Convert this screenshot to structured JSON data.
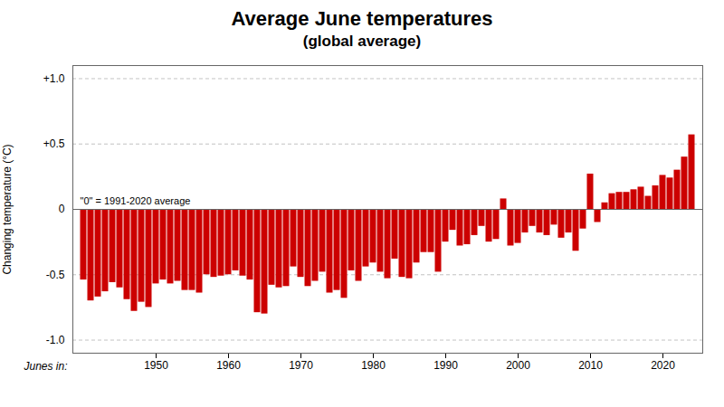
{
  "chart_data": {
    "type": "bar",
    "title": "Average June temperatures",
    "subtitle": "(global average)",
    "ylabel": "Changing temperature (°C)",
    "xlabel": "Junes in:",
    "annotation": "\"0\" = 1991-2020 average",
    "color": "#cc0000",
    "grid": true,
    "xlim": [
      1938.5,
      2025.5
    ],
    "xticks": [
      1950,
      1960,
      1970,
      1980,
      1990,
      2000,
      2010,
      2020
    ],
    "ylim": [
      -1.1,
      1.1
    ],
    "yticks": [
      {
        "value": -1.0,
        "label": "-1.0"
      },
      -0.5,
      0,
      {
        "value": 0.5,
        "label": "+0.5"
      },
      {
        "value": 1.0,
        "label": "+1.0"
      }
    ],
    "x": [
      1940,
      1941,
      1942,
      1943,
      1944,
      1945,
      1946,
      1947,
      1948,
      1949,
      1950,
      1951,
      1952,
      1953,
      1954,
      1955,
      1956,
      1957,
      1958,
      1959,
      1960,
      1961,
      1962,
      1963,
      1964,
      1965,
      1966,
      1967,
      1968,
      1969,
      1970,
      1971,
      1972,
      1973,
      1974,
      1975,
      1976,
      1977,
      1978,
      1979,
      1980,
      1981,
      1982,
      1983,
      1984,
      1985,
      1986,
      1987,
      1988,
      1989,
      1990,
      1991,
      1992,
      1993,
      1994,
      1995,
      1996,
      1997,
      1998,
      1999,
      2000,
      2001,
      2002,
      2003,
      2004,
      2005,
      2006,
      2007,
      2008,
      2009,
      2010,
      2011,
      2012,
      2013,
      2014,
      2015,
      2016,
      2017,
      2018,
      2019,
      2020,
      2021,
      2022,
      2023,
      2024
    ],
    "values": [
      -0.54,
      -0.7,
      -0.67,
      -0.63,
      -0.56,
      -0.6,
      -0.69,
      -0.78,
      -0.71,
      -0.75,
      -0.57,
      -0.54,
      -0.57,
      -0.55,
      -0.62,
      -0.62,
      -0.64,
      -0.5,
      -0.52,
      -0.51,
      -0.5,
      -0.47,
      -0.51,
      -0.54,
      -0.79,
      -0.8,
      -0.58,
      -0.6,
      -0.59,
      -0.44,
      -0.52,
      -0.59,
      -0.55,
      -0.48,
      -0.64,
      -0.62,
      -0.68,
      -0.47,
      -0.55,
      -0.44,
      -0.41,
      -0.48,
      -0.53,
      -0.38,
      -0.52,
      -0.53,
      -0.41,
      -0.33,
      -0.33,
      -0.48,
      -0.25,
      -0.16,
      -0.28,
      -0.27,
      -0.2,
      -0.13,
      -0.25,
      -0.23,
      0.08,
      -0.28,
      -0.26,
      -0.18,
      -0.13,
      -0.18,
      -0.2,
      -0.12,
      -0.22,
      -0.18,
      -0.32,
      -0.15,
      0.27,
      -0.1,
      0.05,
      0.12,
      0.13,
      0.13,
      0.15,
      0.17,
      0.1,
      0.18,
      0.26,
      0.24,
      0.3,
      0.4,
      0.57
    ]
  }
}
